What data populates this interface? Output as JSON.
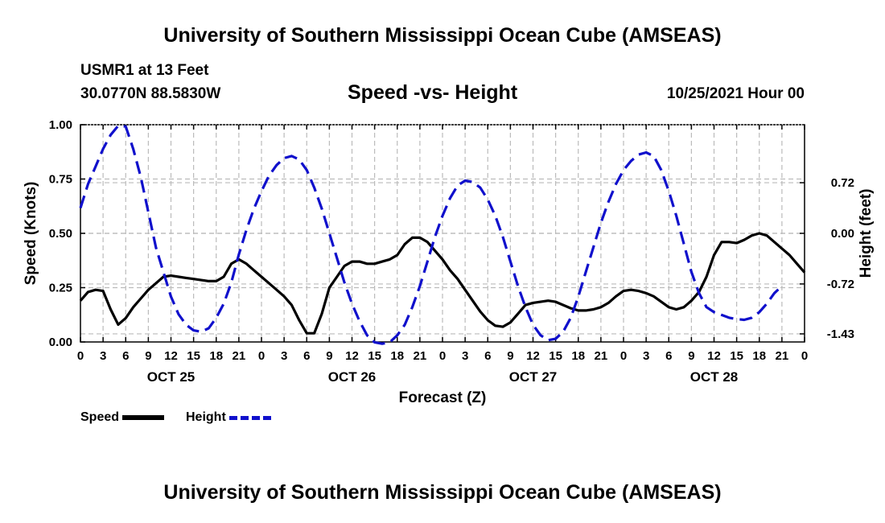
{
  "header": {
    "title": "University of Southern Mississippi Ocean Cube (AMSEAS)",
    "station": "USMR1 at 13 Feet",
    "coords": "30.0770N  88.5830W",
    "chart_title": "Speed -vs- Height",
    "run_date": "10/25/2021 Hour 00"
  },
  "footer": {
    "title": "University of Southern Mississippi Ocean Cube (AMSEAS)"
  },
  "legend": {
    "speed_label": "Speed",
    "height_label": "Height"
  },
  "colors": {
    "speed": "#000000",
    "height": "#1010cc",
    "grid": "#bbbbbb"
  },
  "chart_data": {
    "type": "line",
    "title": "Speed -vs- Height",
    "xlabel": "Forecast (Z)",
    "ylabel": "Speed (Knots)",
    "y2label": "Height (feet)",
    "xlim": [
      0,
      96
    ],
    "ylim": [
      0,
      1
    ],
    "y2lim": [
      -1.545,
      1.545
    ],
    "x_ticks": [
      0,
      3,
      6,
      9,
      12,
      15,
      18,
      21,
      24,
      27,
      30,
      33,
      36,
      39,
      42,
      45,
      48,
      51,
      54,
      57,
      60,
      63,
      66,
      69,
      72,
      75,
      78,
      81,
      84,
      87,
      90,
      93,
      96
    ],
    "x_tick_labels": [
      "0",
      "3",
      "6",
      "9",
      "12",
      "15",
      "18",
      "21",
      "0",
      "3",
      "6",
      "9",
      "12",
      "15",
      "18",
      "21",
      "0",
      "3",
      "6",
      "9",
      "12",
      "15",
      "18",
      "21",
      "0",
      "3",
      "6",
      "9",
      "12",
      "15",
      "18",
      "21",
      "0"
    ],
    "day_labels": [
      {
        "x": 12,
        "label": "OCT 25"
      },
      {
        "x": 36,
        "label": "OCT 26"
      },
      {
        "x": 60,
        "label": "OCT 27"
      },
      {
        "x": 84,
        "label": "OCT 28"
      }
    ],
    "y_ticks": [
      0,
      0.25,
      0.5,
      0.75,
      1.0
    ],
    "y_tick_labels": [
      "0.00",
      "0.25",
      "0.50",
      "0.75",
      "1.00"
    ],
    "y2_ticks": [
      0.72,
      0.0,
      -0.72,
      -1.43
    ],
    "y2_tick_labels": [
      "0.72",
      "0.00",
      "-0.72",
      "-1.43"
    ],
    "series": [
      {
        "name": "Speed",
        "axis": "left",
        "style": "solid",
        "points": [
          [
            0,
            0.19
          ],
          [
            1,
            0.23
          ],
          [
            2,
            0.24
          ],
          [
            3,
            0.235
          ],
          [
            4,
            0.15
          ],
          [
            5,
            0.08
          ],
          [
            6,
            0.11
          ],
          [
            7,
            0.16
          ],
          [
            8,
            0.2
          ],
          [
            9,
            0.24
          ],
          [
            10,
            0.27
          ],
          [
            11,
            0.3
          ],
          [
            12,
            0.305
          ],
          [
            13,
            0.3
          ],
          [
            14,
            0.295
          ],
          [
            15,
            0.29
          ],
          [
            16,
            0.285
          ],
          [
            17,
            0.28
          ],
          [
            18,
            0.28
          ],
          [
            19,
            0.3
          ],
          [
            20,
            0.36
          ],
          [
            21,
            0.38
          ],
          [
            22,
            0.36
          ],
          [
            23,
            0.33
          ],
          [
            24,
            0.3
          ],
          [
            25,
            0.27
          ],
          [
            26,
            0.24
          ],
          [
            27,
            0.21
          ],
          [
            28,
            0.17
          ],
          [
            29,
            0.1
          ],
          [
            30,
            0.04
          ],
          [
            31,
            0.04
          ],
          [
            32,
            0.13
          ],
          [
            33,
            0.25
          ],
          [
            34,
            0.3
          ],
          [
            35,
            0.35
          ],
          [
            36,
            0.37
          ],
          [
            37,
            0.37
          ],
          [
            38,
            0.36
          ],
          [
            39,
            0.36
          ],
          [
            40,
            0.37
          ],
          [
            41,
            0.38
          ],
          [
            42,
            0.4
          ],
          [
            43,
            0.45
          ],
          [
            44,
            0.48
          ],
          [
            45,
            0.48
          ],
          [
            46,
            0.46
          ],
          [
            47,
            0.42
          ],
          [
            48,
            0.38
          ],
          [
            49,
            0.33
          ],
          [
            50,
            0.29
          ],
          [
            51,
            0.24
          ],
          [
            52,
            0.19
          ],
          [
            53,
            0.14
          ],
          [
            54,
            0.1
          ],
          [
            55,
            0.075
          ],
          [
            56,
            0.07
          ],
          [
            57,
            0.09
          ],
          [
            58,
            0.13
          ],
          [
            59,
            0.17
          ],
          [
            60,
            0.18
          ],
          [
            61,
            0.185
          ],
          [
            62,
            0.19
          ],
          [
            63,
            0.185
          ],
          [
            64,
            0.17
          ],
          [
            65,
            0.155
          ],
          [
            66,
            0.145
          ],
          [
            67,
            0.145
          ],
          [
            68,
            0.15
          ],
          [
            69,
            0.16
          ],
          [
            70,
            0.18
          ],
          [
            71,
            0.21
          ],
          [
            72,
            0.235
          ],
          [
            73,
            0.24
          ],
          [
            74,
            0.235
          ],
          [
            75,
            0.225
          ],
          [
            76,
            0.21
          ],
          [
            77,
            0.185
          ],
          [
            78,
            0.16
          ],
          [
            79,
            0.15
          ],
          [
            80,
            0.16
          ],
          [
            81,
            0.19
          ],
          [
            82,
            0.23
          ],
          [
            83,
            0.3
          ],
          [
            84,
            0.4
          ],
          [
            85,
            0.46
          ],
          [
            86,
            0.46
          ],
          [
            87,
            0.455
          ],
          [
            88,
            0.47
          ],
          [
            89,
            0.49
          ],
          [
            90,
            0.5
          ],
          [
            91,
            0.49
          ],
          [
            92,
            0.46
          ],
          [
            93,
            0.43
          ],
          [
            94,
            0.4
          ],
          [
            95,
            0.36
          ],
          [
            96,
            0.32
          ]
        ]
      },
      {
        "name": "Height",
        "axis": "right",
        "style": "dashed",
        "points": [
          [
            0,
            0.36
          ],
          [
            1,
            0.7
          ],
          [
            2,
            0.95
          ],
          [
            3,
            1.2
          ],
          [
            4,
            1.4
          ],
          [
            5,
            1.53
          ],
          [
            6,
            1.52
          ],
          [
            7,
            1.2
          ],
          [
            8,
            0.8
          ],
          [
            9,
            0.3
          ],
          [
            10,
            -0.2
          ],
          [
            11,
            -0.55
          ],
          [
            12,
            -0.9
          ],
          [
            13,
            -1.15
          ],
          [
            14,
            -1.3
          ],
          [
            15,
            -1.38
          ],
          [
            16,
            -1.4
          ],
          [
            17,
            -1.35
          ],
          [
            18,
            -1.2
          ],
          [
            19,
            -1.0
          ],
          [
            20,
            -0.7
          ],
          [
            21,
            -0.3
          ],
          [
            22,
            0.05
          ],
          [
            23,
            0.35
          ],
          [
            24,
            0.6
          ],
          [
            25,
            0.82
          ],
          [
            26,
            0.97
          ],
          [
            27,
            1.07
          ],
          [
            28,
            1.1
          ],
          [
            29,
            1.05
          ],
          [
            30,
            0.9
          ],
          [
            31,
            0.65
          ],
          [
            32,
            0.35
          ],
          [
            33,
            0.0
          ],
          [
            34,
            -0.35
          ],
          [
            35,
            -0.7
          ],
          [
            36,
            -1.0
          ],
          [
            37,
            -1.25
          ],
          [
            38,
            -1.45
          ],
          [
            39,
            -1.55
          ],
          [
            40,
            -1.57
          ],
          [
            41,
            -1.55
          ],
          [
            42,
            -1.45
          ],
          [
            43,
            -1.3
          ],
          [
            44,
            -1.05
          ],
          [
            45,
            -0.75
          ],
          [
            46,
            -0.4
          ],
          [
            47,
            -0.05
          ],
          [
            48,
            0.25
          ],
          [
            49,
            0.5
          ],
          [
            50,
            0.68
          ],
          [
            51,
            0.75
          ],
          [
            52,
            0.73
          ],
          [
            53,
            0.65
          ],
          [
            54,
            0.48
          ],
          [
            55,
            0.25
          ],
          [
            56,
            -0.05
          ],
          [
            57,
            -0.4
          ],
          [
            58,
            -0.75
          ],
          [
            59,
            -1.05
          ],
          [
            60,
            -1.3
          ],
          [
            61,
            -1.45
          ],
          [
            62,
            -1.52
          ],
          [
            63,
            -1.5
          ],
          [
            64,
            -1.4
          ],
          [
            65,
            -1.2
          ],
          [
            66,
            -0.9
          ],
          [
            67,
            -0.55
          ],
          [
            68,
            -0.2
          ],
          [
            69,
            0.15
          ],
          [
            70,
            0.45
          ],
          [
            71,
            0.7
          ],
          [
            72,
            0.9
          ],
          [
            73,
            1.03
          ],
          [
            74,
            1.12
          ],
          [
            75,
            1.15
          ],
          [
            76,
            1.1
          ],
          [
            77,
            0.9
          ],
          [
            78,
            0.6
          ],
          [
            79,
            0.25
          ],
          [
            80,
            -0.15
          ],
          [
            81,
            -0.55
          ],
          [
            82,
            -0.85
          ],
          [
            83,
            -1.05
          ],
          [
            84,
            -1.12
          ],
          [
            85,
            -1.16
          ],
          [
            86,
            -1.2
          ],
          [
            87,
            -1.22
          ],
          [
            88,
            -1.23
          ],
          [
            89,
            -1.2
          ],
          [
            90,
            -1.12
          ],
          [
            91,
            -1.0
          ],
          [
            92,
            -0.85
          ],
          [
            93,
            -0.75
          ]
        ]
      }
    ]
  }
}
